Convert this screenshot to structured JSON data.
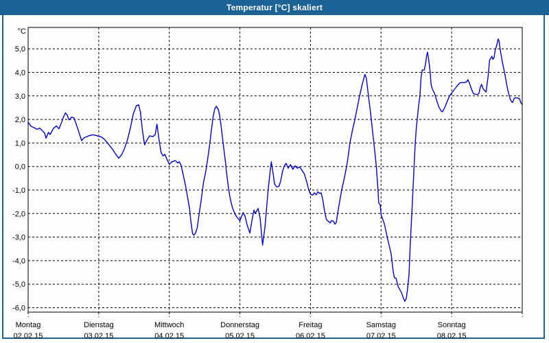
{
  "window": {
    "title": "Temperatur [°C] skaliert"
  },
  "colors": {
    "titlebar": "#1d6295",
    "window_border": "#1d6295",
    "line": "#0000cd",
    "grid": "#000000",
    "axis_text": "#000000",
    "plot_background": "#fdfdfb"
  },
  "chart_data": {
    "type": "line",
    "title": "Temperatur [°C] skaliert",
    "ylabel": "°C",
    "xlabel": "",
    "ylim": [
      -6.2,
      5.9
    ],
    "xlim_hours": [
      0,
      168
    ],
    "x_unit": "hours since Montag 02.02.15 00:00",
    "grid": "dashed",
    "legend": "none",
    "y_ticks": [
      {
        "value": 5,
        "label": "5,0"
      },
      {
        "value": 4,
        "label": "4,0"
      },
      {
        "value": 3,
        "label": "3,0"
      },
      {
        "value": 2,
        "label": "2,0"
      },
      {
        "value": 1,
        "label": "1,0"
      },
      {
        "value": 0,
        "label": "0,0"
      },
      {
        "value": -1,
        "label": "-1,0"
      },
      {
        "value": -2,
        "label": "-2,0"
      },
      {
        "value": -3,
        "label": "-3,0"
      },
      {
        "value": -4,
        "label": "-4,0"
      },
      {
        "value": -5,
        "label": "-5,0"
      },
      {
        "value": -6,
        "label": "-6,0"
      }
    ],
    "days": [
      {
        "name": "Montag",
        "date": "02.02.15"
      },
      {
        "name": "Dienstag",
        "date": "03.02.15"
      },
      {
        "name": "Mittwoch",
        "date": "04.02.15"
      },
      {
        "name": "Donnerstag",
        "date": "05.02.15"
      },
      {
        "name": "Freitag",
        "date": "06.02.15"
      },
      {
        "name": "Samstag",
        "date": "07.02.15"
      },
      {
        "name": "Sonntag",
        "date": "08.02.15"
      }
    ],
    "series": [
      {
        "name": "Temperatur [°C]",
        "color": "#0000cd",
        "points": [
          [
            0,
            1.88
          ],
          [
            0.9,
            1.72
          ],
          [
            2,
            1.65
          ],
          [
            3,
            1.58
          ],
          [
            4,
            1.63
          ],
          [
            5,
            1.5
          ],
          [
            5.6,
            1.42
          ],
          [
            6.1,
            1.2
          ],
          [
            6.9,
            1.45
          ],
          [
            7.5,
            1.36
          ],
          [
            8.6,
            1.62
          ],
          [
            9.6,
            1.72
          ],
          [
            10.5,
            1.6
          ],
          [
            11.3,
            1.85
          ],
          [
            12,
            2.1
          ],
          [
            12.7,
            2.28
          ],
          [
            13.3,
            2.18
          ],
          [
            13.9,
            1.98
          ],
          [
            14.8,
            2.1
          ],
          [
            15.6,
            2.06
          ],
          [
            16.5,
            1.75
          ],
          [
            17.4,
            1.4
          ],
          [
            18.2,
            1.1
          ],
          [
            19,
            1.22
          ],
          [
            20,
            1.27
          ],
          [
            21,
            1.32
          ],
          [
            22,
            1.35
          ],
          [
            23,
            1.32
          ],
          [
            24,
            1.28
          ],
          [
            25,
            1.25
          ],
          [
            26,
            1.15
          ],
          [
            27,
            1.0
          ],
          [
            27.9,
            0.85
          ],
          [
            28.8,
            0.72
          ],
          [
            29.6,
            0.55
          ],
          [
            30.8,
            0.35
          ],
          [
            31.8,
            0.5
          ],
          [
            32.8,
            0.78
          ],
          [
            33.8,
            1.15
          ],
          [
            34.8,
            1.65
          ],
          [
            35.8,
            2.25
          ],
          [
            36.8,
            2.58
          ],
          [
            37.6,
            2.62
          ],
          [
            38.2,
            2.3
          ],
          [
            38.9,
            1.5
          ],
          [
            39.6,
            0.92
          ],
          [
            40.4,
            1.12
          ],
          [
            41.3,
            1.3
          ],
          [
            42.4,
            1.27
          ],
          [
            43.2,
            1.35
          ],
          [
            43.8,
            1.8
          ],
          [
            44.5,
            1.15
          ],
          [
            45.2,
            0.6
          ],
          [
            45.9,
            0.45
          ],
          [
            46.5,
            0.52
          ],
          [
            47.2,
            0.3
          ],
          [
            48,
            0.1
          ],
          [
            48.9,
            0.2
          ],
          [
            50,
            0.25
          ],
          [
            50.9,
            0.15
          ],
          [
            51.4,
            0.2
          ],
          [
            52,
            0.05
          ],
          [
            52.8,
            -0.4
          ],
          [
            53.5,
            -0.8
          ],
          [
            54.2,
            -1.3
          ],
          [
            54.9,
            -1.8
          ],
          [
            55.3,
            -2.3
          ],
          [
            55.9,
            -2.85
          ],
          [
            56.4,
            -2.92
          ],
          [
            57,
            -2.8
          ],
          [
            57.5,
            -2.6
          ],
          [
            58.1,
            -2.06
          ],
          [
            58.9,
            -1.38
          ],
          [
            59.6,
            -0.7
          ],
          [
            60.4,
            -0.21
          ],
          [
            61,
            0.27
          ],
          [
            61.7,
            0.9
          ],
          [
            62.3,
            1.54
          ],
          [
            62.9,
            2.12
          ],
          [
            63.5,
            2.46
          ],
          [
            64,
            2.56
          ],
          [
            64.7,
            2.41
          ],
          [
            65.1,
            2.17
          ],
          [
            65.5,
            1.83
          ],
          [
            65.9,
            1.44
          ],
          [
            66.3,
            1.0
          ],
          [
            66.7,
            0.57
          ],
          [
            67.1,
            0.18
          ],
          [
            67.4,
            -0.21
          ],
          [
            67.8,
            -0.6
          ],
          [
            68.2,
            -0.99
          ],
          [
            68.6,
            -1.28
          ],
          [
            69,
            -1.52
          ],
          [
            69.4,
            -1.72
          ],
          [
            69.8,
            -1.86
          ],
          [
            70.5,
            -2.06
          ],
          [
            71.3,
            -2.2
          ],
          [
            72,
            -2.3
          ],
          [
            73.1,
            -1.96
          ],
          [
            73.7,
            -2.1
          ],
          [
            74.5,
            -2.5
          ],
          [
            75.4,
            -2.83
          ],
          [
            76.1,
            -2.3
          ],
          [
            76.8,
            -1.85
          ],
          [
            77.2,
            -2.0
          ],
          [
            78.2,
            -1.78
          ],
          [
            78.9,
            -2.2
          ],
          [
            79.7,
            -3.34
          ],
          [
            80.5,
            -2.6
          ],
          [
            81,
            -1.9
          ],
          [
            81.6,
            -1.0
          ],
          [
            82.4,
            -0.1
          ],
          [
            82.7,
            0.2
          ],
          [
            83.3,
            -0.3
          ],
          [
            83.8,
            -0.75
          ],
          [
            84.5,
            -0.87
          ],
          [
            85.3,
            -0.84
          ],
          [
            85.9,
            -0.6
          ],
          [
            86.5,
            -0.21
          ],
          [
            87,
            0.0
          ],
          [
            87.7,
            0.13
          ],
          [
            88.4,
            -0.07
          ],
          [
            89.2,
            0.08
          ],
          [
            90,
            -0.12
          ],
          [
            90.8,
            0.03
          ],
          [
            91.5,
            -0.07
          ],
          [
            92.3,
            -0.02
          ],
          [
            93.1,
            -0.16
          ],
          [
            93.9,
            -0.31
          ],
          [
            94.7,
            -0.65
          ],
          [
            95.4,
            -0.99
          ],
          [
            96,
            -1.18
          ],
          [
            96.8,
            -1.22
          ],
          [
            97.3,
            -1.12
          ],
          [
            98,
            -1.2
          ],
          [
            98.5,
            -1.08
          ],
          [
            99.2,
            -1.15
          ],
          [
            99.6,
            -1.12
          ],
          [
            100.1,
            -1.35
          ],
          [
            100.8,
            -1.9
          ],
          [
            101.4,
            -2.25
          ],
          [
            102,
            -2.32
          ],
          [
            102.7,
            -2.4
          ],
          [
            103.1,
            -2.3
          ],
          [
            103.8,
            -2.33
          ],
          [
            104.3,
            -2.45
          ],
          [
            104.8,
            -2.38
          ],
          [
            105.2,
            -2.0
          ],
          [
            105.9,
            -1.5
          ],
          [
            106.6,
            -1.0
          ],
          [
            107.5,
            -0.5
          ],
          [
            108.3,
            0.0
          ],
          [
            108.9,
            0.5
          ],
          [
            109.4,
            1.0
          ],
          [
            110.2,
            1.5
          ],
          [
            111.1,
            2.0
          ],
          [
            111.9,
            2.5
          ],
          [
            112.7,
            3.0
          ],
          [
            113.6,
            3.5
          ],
          [
            114.5,
            3.91
          ],
          [
            115,
            3.75
          ],
          [
            115.7,
            3.0
          ],
          [
            116.4,
            2.3
          ],
          [
            117.1,
            1.5
          ],
          [
            117.8,
            0.7
          ],
          [
            118.4,
            0.0
          ],
          [
            118.9,
            -0.9
          ],
          [
            119.2,
            -1.55
          ],
          [
            119.7,
            -1.62
          ],
          [
            120,
            -2.05
          ],
          [
            121.1,
            -2.43
          ],
          [
            122.3,
            -3.11
          ],
          [
            123.4,
            -3.7
          ],
          [
            124.1,
            -4.45
          ],
          [
            124.5,
            -4.72
          ],
          [
            125.1,
            -4.75
          ],
          [
            125.8,
            -5.1
          ],
          [
            126.9,
            -5.35
          ],
          [
            127.6,
            -5.6
          ],
          [
            128.1,
            -5.73
          ],
          [
            128.6,
            -5.6
          ],
          [
            129,
            -5.2
          ],
          [
            129.5,
            -4.6
          ],
          [
            129.9,
            -3.4
          ],
          [
            130.3,
            -2.4
          ],
          [
            130.7,
            -1.4
          ],
          [
            131.1,
            -0.3
          ],
          [
            131.6,
            0.95
          ],
          [
            132,
            1.65
          ],
          [
            132.4,
            2.13
          ],
          [
            132.8,
            2.6
          ],
          [
            133.2,
            3.0
          ],
          [
            133.6,
            3.8
          ],
          [
            134,
            4.1
          ],
          [
            134.7,
            4.1
          ],
          [
            135.1,
            4.35
          ],
          [
            135.5,
            4.7
          ],
          [
            135.8,
            4.86
          ],
          [
            136.3,
            4.45
          ],
          [
            136.7,
            4.0
          ],
          [
            137,
            3.5
          ],
          [
            137.4,
            3.3
          ],
          [
            138.2,
            3.1
          ],
          [
            139,
            2.77
          ],
          [
            139.7,
            2.52
          ],
          [
            140.5,
            2.35
          ],
          [
            140.9,
            2.33
          ],
          [
            141.7,
            2.52
          ],
          [
            142.5,
            2.77
          ],
          [
            143.3,
            3.0
          ],
          [
            144,
            3.12
          ],
          [
            145.1,
            3.3
          ],
          [
            145.8,
            3.42
          ],
          [
            146.8,
            3.55
          ],
          [
            147.5,
            3.57
          ],
          [
            148.2,
            3.56
          ],
          [
            149.1,
            3.6
          ],
          [
            149.5,
            3.69
          ],
          [
            150,
            3.55
          ],
          [
            150.7,
            3.3
          ],
          [
            151.4,
            3.1
          ],
          [
            152.1,
            3.07
          ],
          [
            152.8,
            3.06
          ],
          [
            153.3,
            3.12
          ],
          [
            153.8,
            3.39
          ],
          [
            154.2,
            3.49
          ],
          [
            154.7,
            3.3
          ],
          [
            155.3,
            3.22
          ],
          [
            155.7,
            3.16
          ],
          [
            156.5,
            3.94
          ],
          [
            156.9,
            4.52
          ],
          [
            157.3,
            4.6
          ],
          [
            157.7,
            4.68
          ],
          [
            158,
            4.55
          ],
          [
            158.4,
            4.62
          ],
          [
            158.8,
            4.94
          ],
          [
            159.4,
            5.18
          ],
          [
            159.8,
            5.42
          ],
          [
            160.1,
            5.35
          ],
          [
            160.6,
            4.89
          ],
          [
            161.3,
            4.4
          ],
          [
            162.1,
            3.92
          ],
          [
            162.8,
            3.43
          ],
          [
            163.3,
            3.14
          ],
          [
            163.9,
            2.87
          ],
          [
            164.4,
            2.75
          ],
          [
            164.7,
            2.72
          ],
          [
            165.3,
            2.9
          ],
          [
            165.9,
            2.92
          ],
          [
            166.6,
            2.9
          ],
          [
            167.1,
            2.88
          ],
          [
            167.4,
            2.75
          ],
          [
            168,
            2.62
          ]
        ]
      }
    ]
  }
}
